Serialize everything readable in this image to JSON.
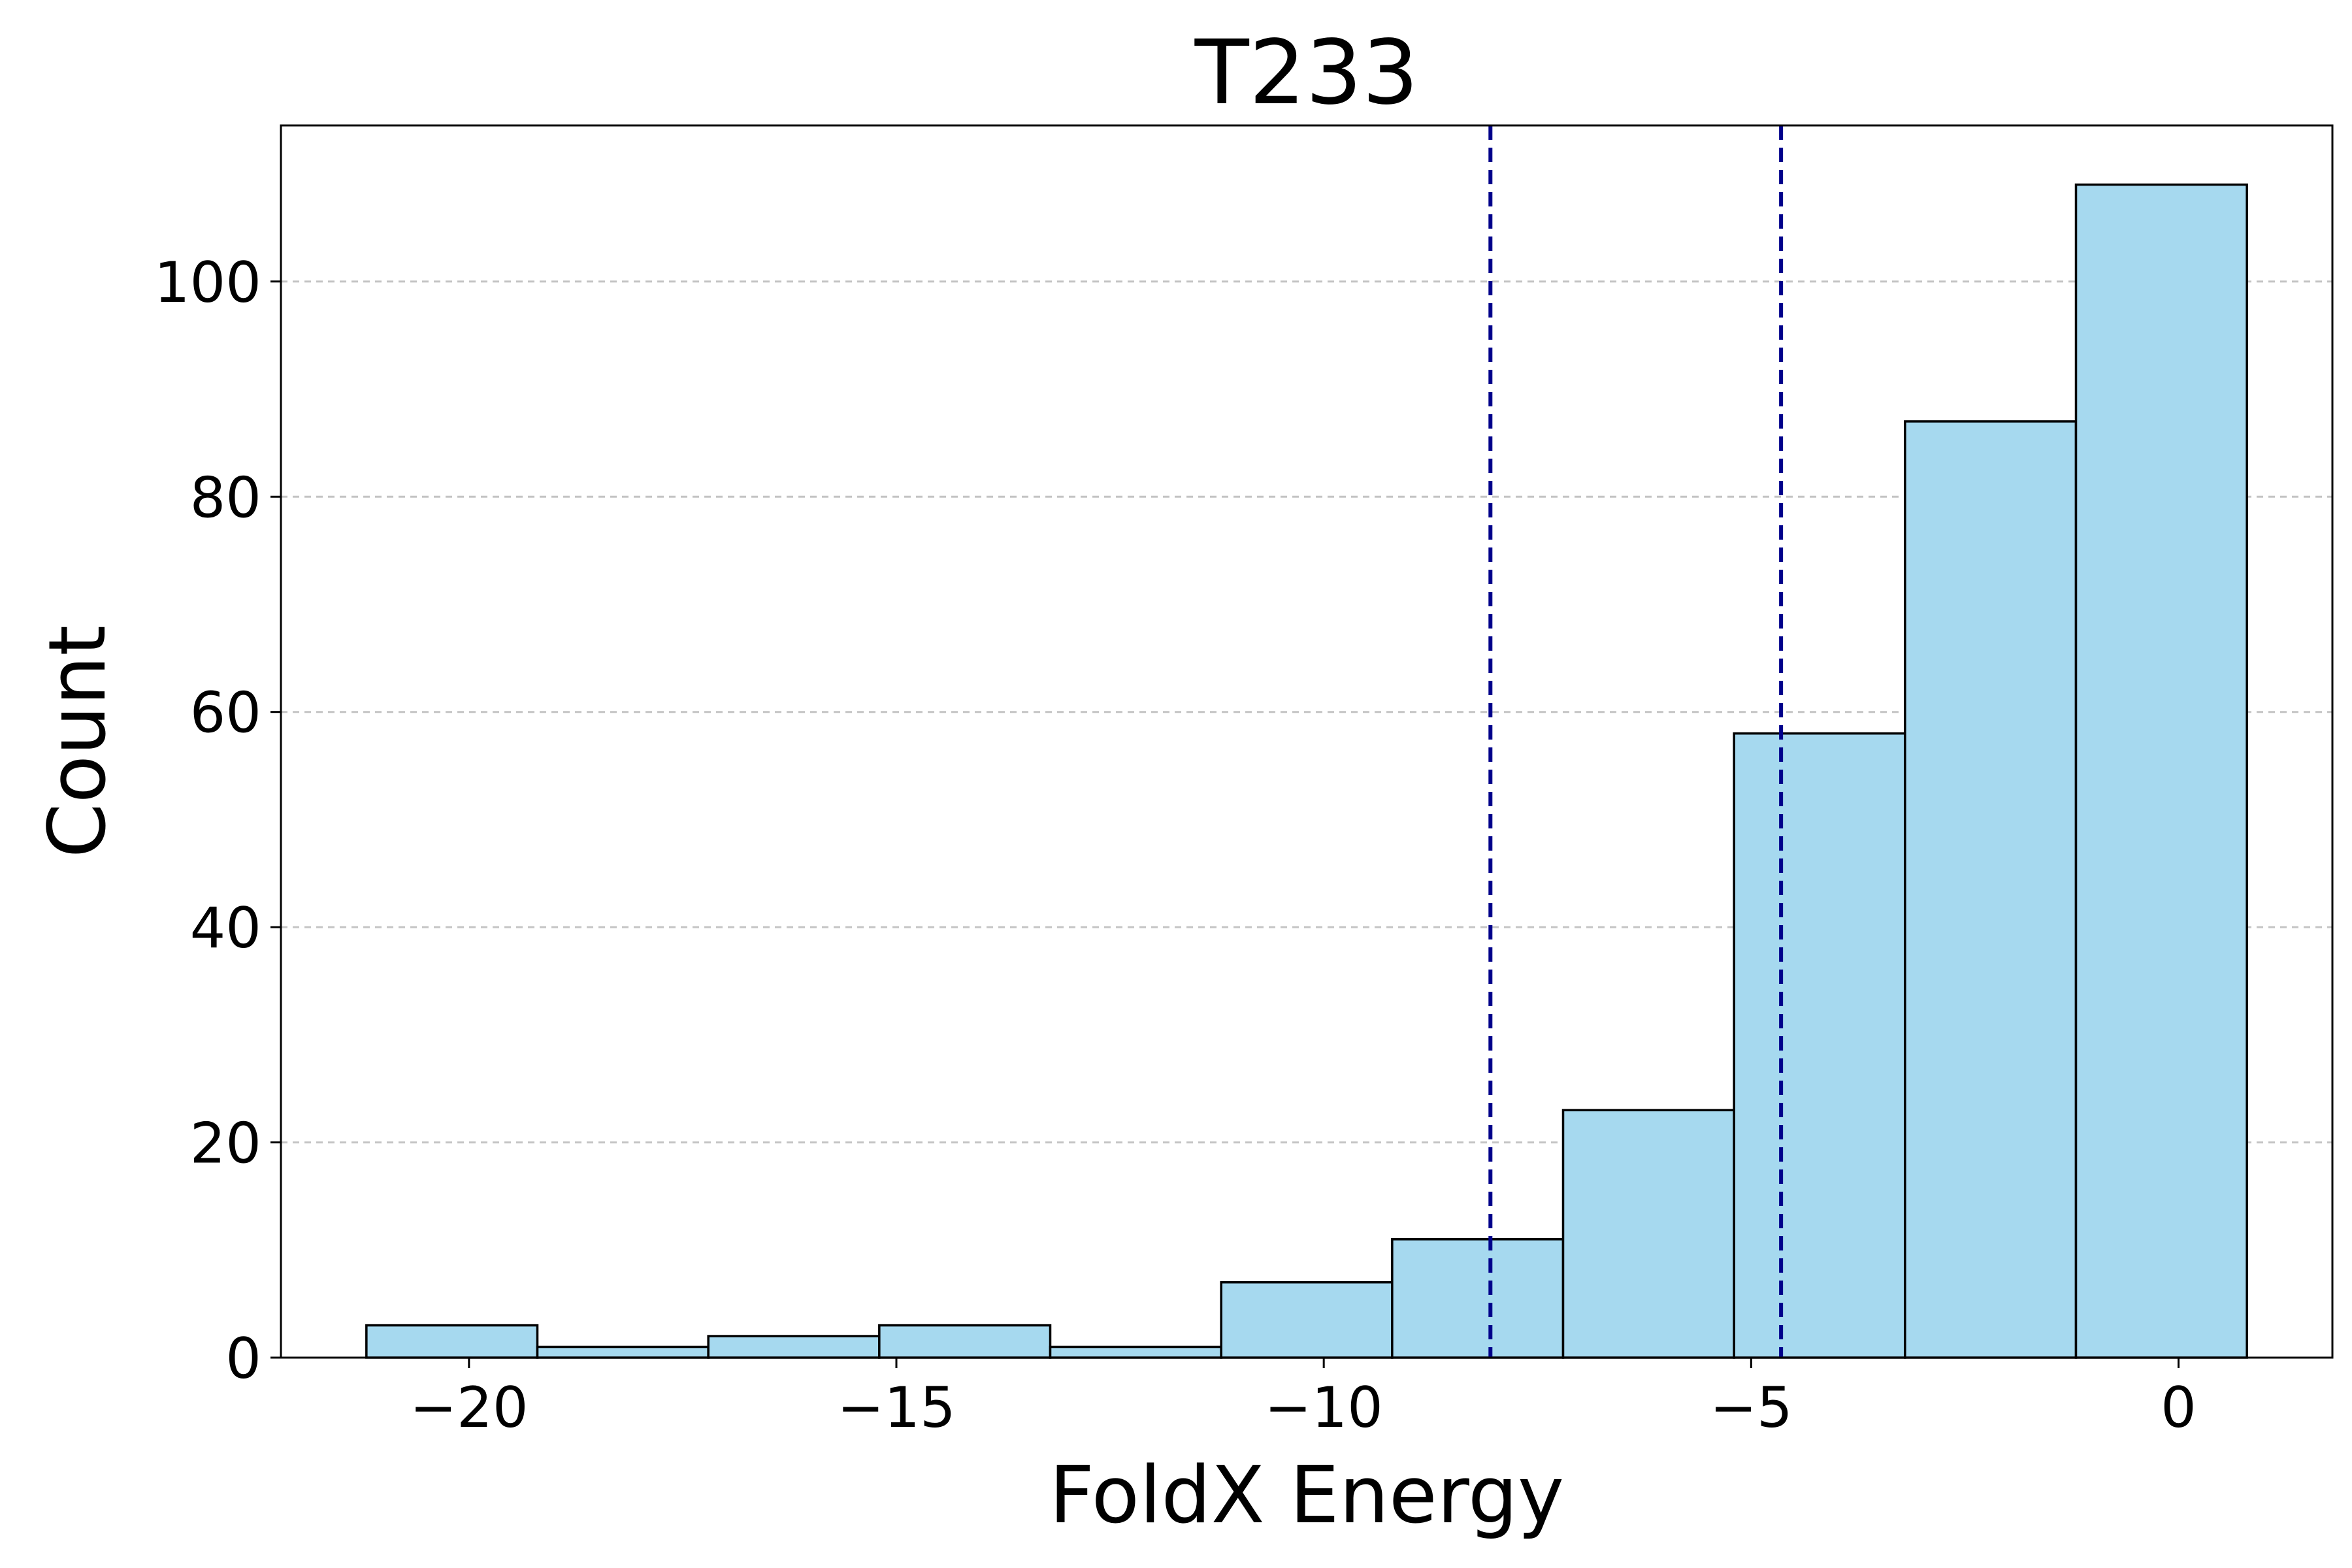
{
  "chart_data": {
    "type": "histogram",
    "title": "T233",
    "xlabel": "FoldX Energy",
    "ylabel": "Count",
    "xlim": [
      -22.2,
      1.8
    ],
    "ylim": [
      0,
      114.5
    ],
    "bins": [
      {
        "x0": -21.2,
        "x1": -19.2,
        "count": 3
      },
      {
        "x0": -19.2,
        "x1": -17.2,
        "count": 1
      },
      {
        "x0": -17.2,
        "x1": -15.2,
        "count": 2
      },
      {
        "x0": -15.2,
        "x1": -13.2,
        "count": 3
      },
      {
        "x0": -13.2,
        "x1": -11.2,
        "count": 1
      },
      {
        "x0": -11.2,
        "x1": -9.2,
        "count": 7
      },
      {
        "x0": -9.2,
        "x1": -7.2,
        "count": 11
      },
      {
        "x0": -7.2,
        "x1": -5.2,
        "count": 23
      },
      {
        "x0": -5.2,
        "x1": -3.2,
        "count": 58
      },
      {
        "x0": -3.2,
        "x1": -1.2,
        "count": 87
      },
      {
        "x0": -1.2,
        "x1": 0.8,
        "count": 109
      }
    ],
    "vlines": [
      -8.05,
      -4.65
    ],
    "xticks": [
      -20,
      -15,
      -10,
      -5,
      0
    ],
    "xtick_labels": [
      "−20",
      "−15",
      "−10",
      "−5",
      "0"
    ],
    "yticks": [
      0,
      20,
      40,
      60,
      80,
      100
    ],
    "ytick_labels": [
      "0",
      "20",
      "40",
      "60",
      "80",
      "100"
    ],
    "grid": "y-axis, dashed",
    "colors": {
      "bar_fill": "#a6d9ef",
      "bar_edge": "#000000",
      "vline": "#00008b",
      "grid": "#c4c4c4"
    }
  }
}
